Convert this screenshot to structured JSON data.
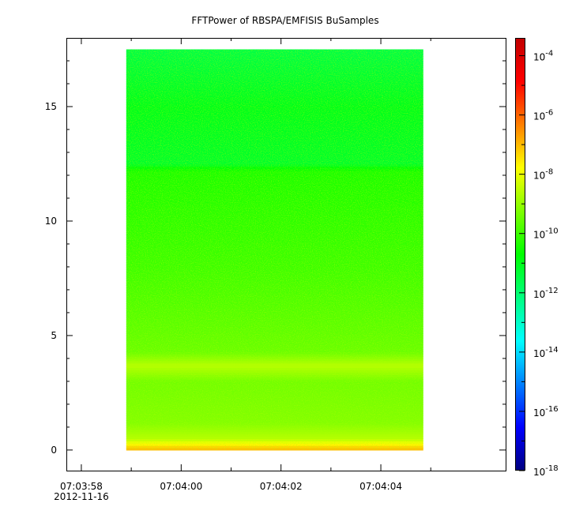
{
  "chart_data": {
    "type": "heatmap",
    "title": "FFTPower of RBSPA/EMFISIS  BuSamples",
    "xlabel": "",
    "ylabel": "",
    "x_ticks": [
      {
        "value": 0,
        "label": "07:03:58",
        "sublabel": "2012-11-16"
      },
      {
        "value": 2,
        "label": "07:04:00"
      },
      {
        "value": 4,
        "label": "07:04:02"
      },
      {
        "value": 6,
        "label": "07:04:04"
      }
    ],
    "x_minor_ticks": [
      1,
      3,
      5,
      7
    ],
    "xlim": [
      -0.3,
      8.5
    ],
    "ylim": [
      -0.9,
      18.0
    ],
    "y_ticks": [
      {
        "value": 0,
        "label": "0"
      },
      {
        "value": 5,
        "label": "5"
      },
      {
        "value": 10,
        "label": "10"
      },
      {
        "value": 15,
        "label": "15"
      }
    ],
    "y_minor_ticks": [
      1,
      2,
      3,
      4,
      6,
      7,
      8,
      9,
      11,
      12,
      13,
      14,
      16,
      17
    ],
    "data_extent": {
      "x": [
        0.9,
        6.85
      ],
      "y": [
        0.0,
        17.5
      ]
    },
    "colorbar": {
      "scale": "log",
      "min_exponent": -18,
      "max_exponent": -3.4,
      "tick_base": "10",
      "tick_exponents": [
        "-4",
        "-6",
        "-8",
        "-10",
        "-12",
        "-14",
        "-16",
        "-18"
      ],
      "colors": [
        "#00007f",
        "#0000ff",
        "#007fff",
        "#00ffff",
        "#00ff7f",
        "#00ff00",
        "#7fff00",
        "#ffff00",
        "#ff7f00",
        "#ff0000",
        "#c00000"
      ]
    },
    "log10_power_profile": [
      {
        "y": 0.0,
        "log10_power": -6.9
      },
      {
        "y": 0.15,
        "log10_power": -7.3
      },
      {
        "y": 0.5,
        "log10_power": -8.6
      },
      {
        "y": 1.2,
        "log10_power": -9.2
      },
      {
        "y": 3.0,
        "log10_power": -9.4
      },
      {
        "y": 3.7,
        "log10_power": -8.6
      },
      {
        "y": 4.3,
        "log10_power": -9.5
      },
      {
        "y": 8.0,
        "log10_power": -10.0
      },
      {
        "y": 12.2,
        "log10_power": -10.4
      },
      {
        "y": 12.5,
        "log10_power": -11.2
      },
      {
        "y": 15.0,
        "log10_power": -11.0
      },
      {
        "y": 17.5,
        "log10_power": -11.5
      }
    ]
  }
}
